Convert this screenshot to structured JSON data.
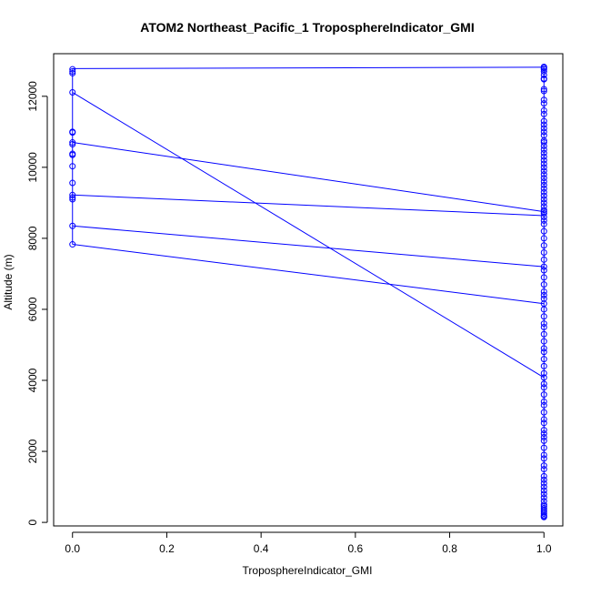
{
  "chart_data": {
    "type": "line",
    "title": "ATOM2 Northeast_Pacific_1 TroposphereIndicator_GMI",
    "xlabel": "TroposphereIndicator_GMI",
    "ylabel": "Altitude (m)",
    "xlim": [
      -0.04,
      1.04
    ],
    "ylim": [
      -100,
      13200
    ],
    "xticks": [
      0.0,
      0.2,
      0.4,
      0.6,
      0.8,
      1.0
    ],
    "xtick_labels": [
      "0.0",
      "0.2",
      "0.4",
      "0.6",
      "0.8",
      "1.0"
    ],
    "yticks": [
      0,
      2000,
      4000,
      6000,
      8000,
      10000,
      12000
    ],
    "ytick_labels": [
      "0",
      "2000",
      "4000",
      "6000",
      "8000",
      "10000",
      "12000"
    ],
    "grid": false,
    "legend": "none",
    "series_color": "#0000ff",
    "segments": [
      {
        "x": [
          0,
          1
        ],
        "y": [
          12780,
          12820
        ]
      },
      {
        "x": [
          0,
          1
        ],
        "y": [
          12110,
          4080
        ]
      },
      {
        "x": [
          0,
          1
        ],
        "y": [
          10700,
          8750
        ]
      },
      {
        "x": [
          0,
          1
        ],
        "y": [
          9220,
          8640
        ]
      },
      {
        "x": [
          0,
          1
        ],
        "y": [
          8350,
          7200
        ]
      },
      {
        "x": [
          0,
          1
        ],
        "y": [
          7830,
          6160
        ]
      }
    ],
    "points_x0": [
      12760,
      12700,
      12650,
      12110,
      11000,
      10980,
      10700,
      10650,
      10380,
      10350,
      10030,
      9560,
      9220,
      9150,
      9100,
      8350,
      7830
    ],
    "points_x1": [
      12830,
      12800,
      12760,
      12700,
      12600,
      12500,
      12480,
      12200,
      12150,
      11900,
      11800,
      11600,
      11500,
      11300,
      11200,
      11100,
      11000,
      10900,
      10750,
      10700,
      10600,
      10500,
      10400,
      10300,
      10200,
      10100,
      10000,
      9900,
      9800,
      9700,
      9600,
      9500,
      9400,
      9300,
      9200,
      9100,
      9000,
      8900,
      8800,
      8750,
      8700,
      8600,
      8500,
      8400,
      8200,
      8000,
      7800,
      7600,
      7400,
      7200,
      7100,
      6900,
      6700,
      6500,
      6400,
      6300,
      6160,
      6000,
      5800,
      5600,
      5500,
      5300,
      5100,
      4900,
      4800,
      4600,
      4400,
      4200,
      4080,
      3900,
      3800,
      3600,
      3400,
      3300,
      3100,
      2900,
      2800,
      2600,
      2500,
      2400,
      2300,
      2100,
      1900,
      1800,
      1600,
      1500,
      1300,
      1200,
      1100,
      1000,
      900,
      800,
      700,
      600,
      500,
      450,
      400,
      350,
      300,
      250,
      200,
      170,
      150
    ]
  }
}
